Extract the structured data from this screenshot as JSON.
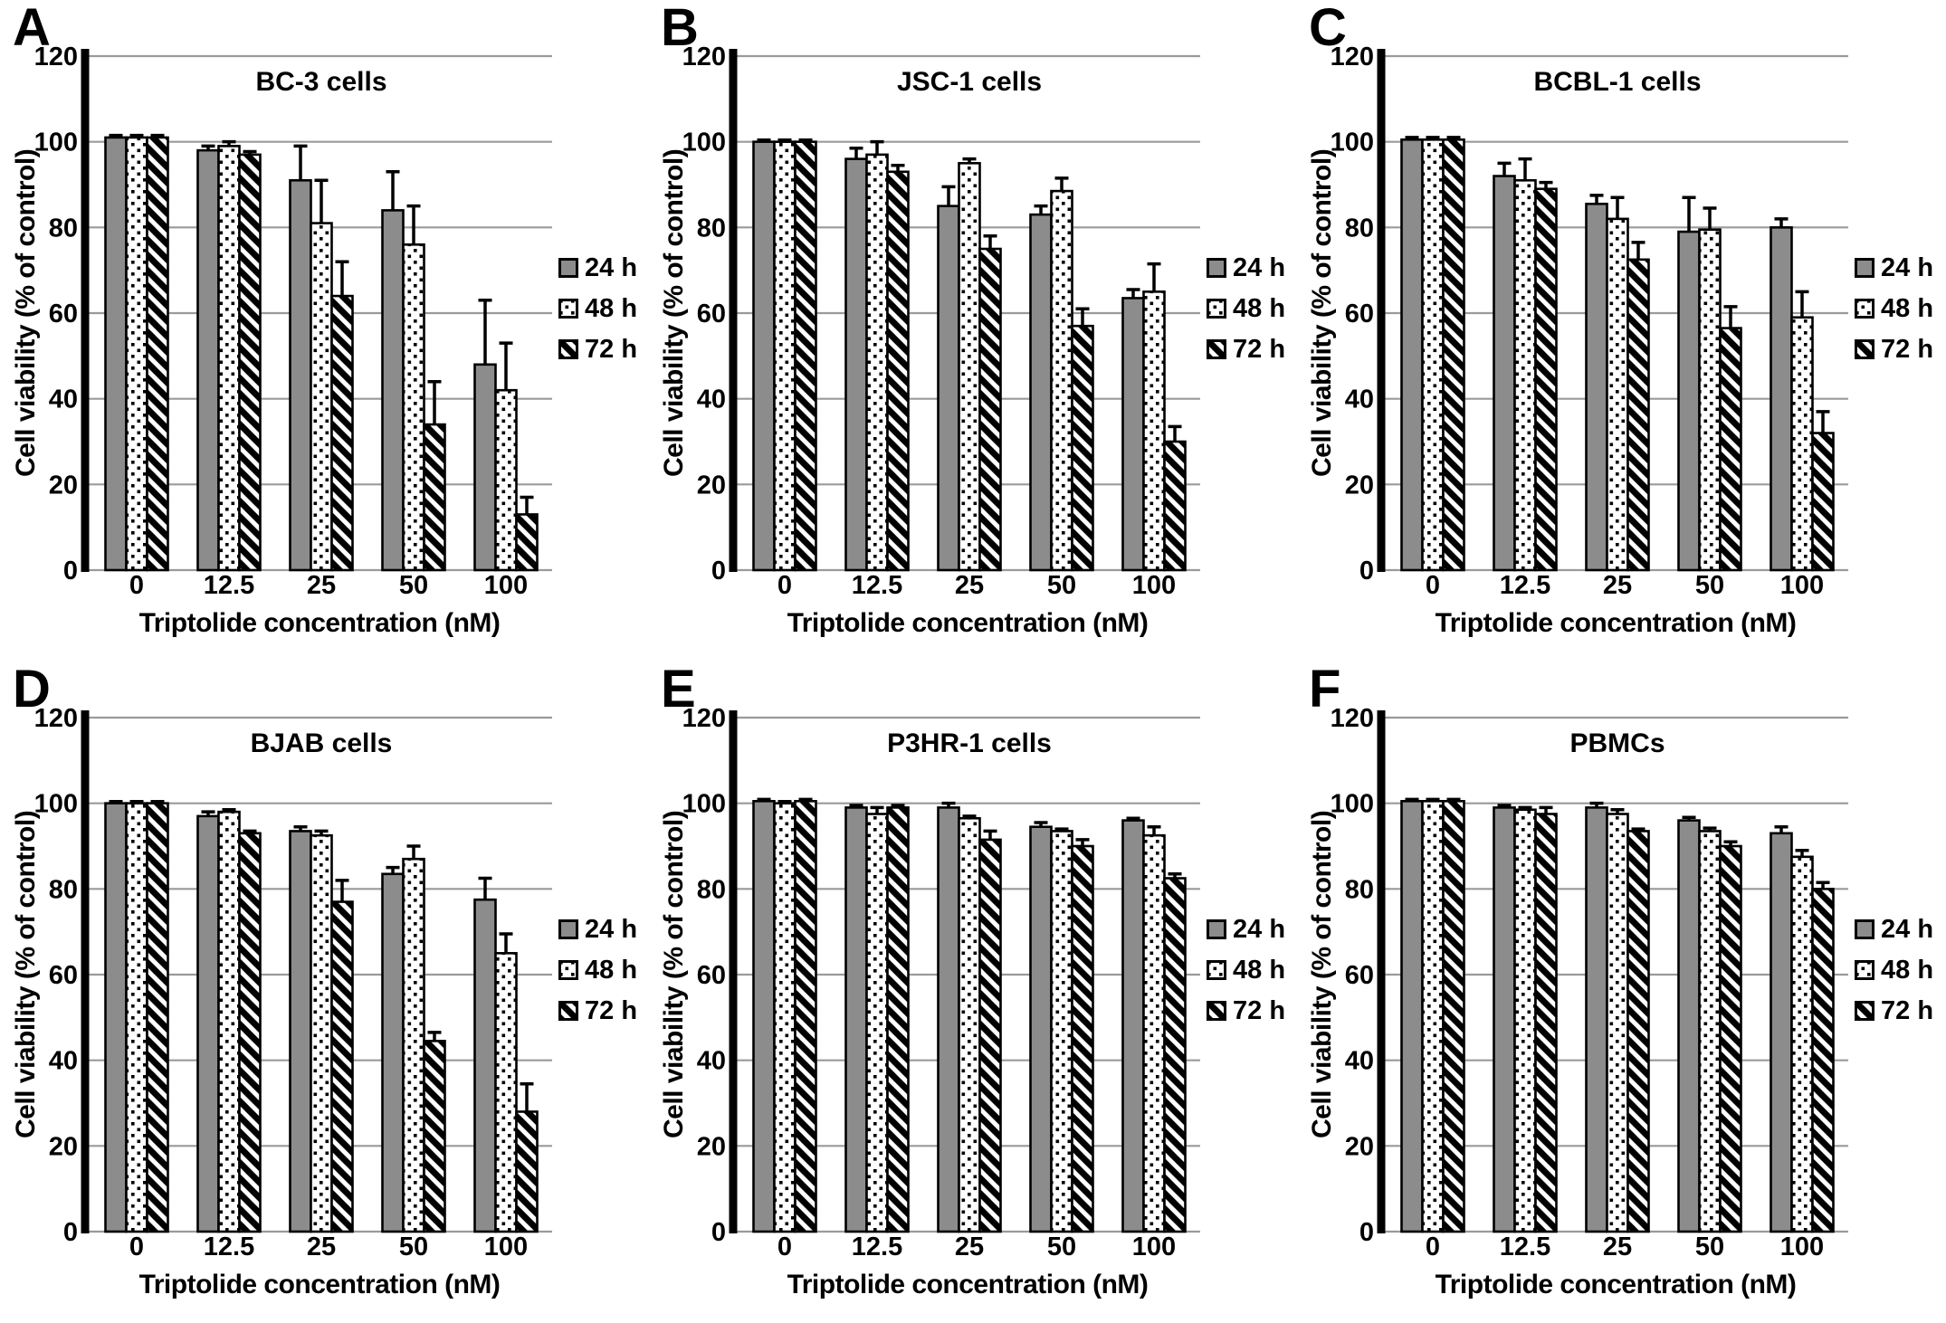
{
  "figure": {
    "y_axis_label": "Cell viability (% of control)",
    "x_axis_label": "Triptolide concentration (nM)",
    "legend_labels": [
      "24 h",
      "48 h",
      "72 h"
    ],
    "colors": {
      "background": "#ffffff",
      "text": "#000000",
      "bar_fill_24h": "#8c8c8c",
      "bar_fill_48h_base": "#ffffff",
      "bar_pattern": "#000000",
      "bar_stroke": "#000000",
      "gridline": "#9a9a9a",
      "axis_line": "#000000",
      "error_bar": "#000000"
    }
  },
  "chart_data": [
    {
      "panel": "A",
      "type": "bar",
      "title": "BC-3 cells",
      "xlabel": "Triptolide concentration (nM)",
      "ylabel": "Cell viability (% of control)",
      "categories": [
        "0",
        "12.5",
        "25",
        "50",
        "100"
      ],
      "ylim": [
        0,
        120
      ],
      "yticks": [
        0,
        20,
        40,
        60,
        80,
        100,
        120
      ],
      "grid": true,
      "legend_position": "right",
      "series": [
        {
          "name": "24 h",
          "values": [
            101,
            98,
            91,
            84,
            48
          ],
          "errors": [
            0.5,
            1,
            8,
            9,
            15
          ]
        },
        {
          "name": "48 h",
          "values": [
            101,
            99,
            81,
            76,
            42
          ],
          "errors": [
            0.5,
            1,
            10,
            9,
            11
          ]
        },
        {
          "name": "72 h",
          "values": [
            101,
            97,
            64,
            34,
            13
          ],
          "errors": [
            0.5,
            0.7,
            8,
            10,
            4
          ]
        }
      ]
    },
    {
      "panel": "B",
      "type": "bar",
      "title": "JSC-1 cells",
      "xlabel": "Triptolide concentration (nM)",
      "ylabel": "Cell viability (% of control)",
      "categories": [
        "0",
        "12.5",
        "25",
        "50",
        "100"
      ],
      "ylim": [
        0,
        120
      ],
      "yticks": [
        0,
        20,
        40,
        60,
        80,
        100,
        120
      ],
      "grid": true,
      "legend_position": "right",
      "series": [
        {
          "name": "24 h",
          "values": [
            100,
            96,
            85,
            83,
            63.5
          ],
          "errors": [
            0.4,
            2.5,
            4.5,
            2,
            2
          ]
        },
        {
          "name": "48 h",
          "values": [
            100,
            97,
            95,
            88.5,
            65
          ],
          "errors": [
            0.4,
            3,
            1,
            3,
            6.5
          ]
        },
        {
          "name": "72 h",
          "values": [
            100,
            93,
            75,
            57,
            30
          ],
          "errors": [
            0.4,
            1.5,
            3,
            4,
            3.5
          ]
        }
      ]
    },
    {
      "panel": "C",
      "type": "bar",
      "title": "BCBL-1 cells",
      "xlabel": "Triptolide concentration (nM)",
      "ylabel": "Cell viability (% of control)",
      "categories": [
        "0",
        "12.5",
        "25",
        "50",
        "100"
      ],
      "ylim": [
        0,
        120
      ],
      "yticks": [
        0,
        20,
        40,
        60,
        80,
        100,
        120
      ],
      "grid": true,
      "legend_position": "right",
      "series": [
        {
          "name": "24 h",
          "values": [
            100.5,
            92,
            85.5,
            79,
            80
          ],
          "errors": [
            0.5,
            3,
            2,
            8,
            2
          ]
        },
        {
          "name": "48 h",
          "values": [
            100.5,
            91,
            82,
            79.5,
            59
          ],
          "errors": [
            0.5,
            5,
            5,
            5,
            6
          ]
        },
        {
          "name": "72 h",
          "values": [
            100.5,
            89,
            72.5,
            56.5,
            32
          ],
          "errors": [
            0.5,
            1.5,
            4,
            5,
            5
          ]
        }
      ]
    },
    {
      "panel": "D",
      "type": "bar",
      "title": "BJAB cells",
      "xlabel": "Triptolide concentration (nM)",
      "ylabel": "Cell viability (% of control)",
      "categories": [
        "0",
        "12.5",
        "25",
        "50",
        "100"
      ],
      "ylim": [
        0,
        120
      ],
      "yticks": [
        0,
        20,
        40,
        60,
        80,
        100,
        120
      ],
      "grid": true,
      "legend_position": "right",
      "series": [
        {
          "name": "24 h",
          "values": [
            100,
            97,
            93.5,
            83.5,
            77.5
          ],
          "errors": [
            0.4,
            1,
            1,
            1.5,
            5
          ]
        },
        {
          "name": "48 h",
          "values": [
            100,
            98,
            92.5,
            87,
            65
          ],
          "errors": [
            0.4,
            0.5,
            1,
            3,
            4.5
          ]
        },
        {
          "name": "72 h",
          "values": [
            100,
            93,
            77,
            44.5,
            28
          ],
          "errors": [
            0.4,
            0.5,
            5,
            2,
            6.5
          ]
        }
      ]
    },
    {
      "panel": "E",
      "type": "bar",
      "title": "P3HR-1 cells",
      "xlabel": "Triptolide concentration (nM)",
      "ylabel": "Cell viability (% of control)",
      "categories": [
        "0",
        "12.5",
        "25",
        "50",
        "100"
      ],
      "ylim": [
        0,
        120
      ],
      "yticks": [
        0,
        20,
        40,
        60,
        80,
        100,
        120
      ],
      "grid": true,
      "legend_position": "right",
      "series": [
        {
          "name": "24 h",
          "values": [
            100.5,
            99,
            99,
            94.5,
            96
          ],
          "errors": [
            0.4,
            0.5,
            1,
            1,
            0.5
          ]
        },
        {
          "name": "48 h",
          "values": [
            100,
            97.5,
            96.5,
            93.5,
            92.5
          ],
          "errors": [
            0.4,
            1.5,
            0.5,
            0.5,
            2
          ]
        },
        {
          "name": "72 h",
          "values": [
            100.5,
            99,
            91.5,
            90,
            82.5
          ],
          "errors": [
            0.4,
            0.5,
            2,
            1.5,
            1
          ]
        }
      ]
    },
    {
      "panel": "F",
      "type": "bar",
      "title": "PBMCs",
      "xlabel": "Triptolide concentration (nM)",
      "ylabel": "Cell viability (% of control)",
      "categories": [
        "0",
        "12.5",
        "25",
        "50",
        "100"
      ],
      "ylim": [
        0,
        120
      ],
      "yticks": [
        0,
        20,
        40,
        60,
        80,
        100,
        120
      ],
      "grid": true,
      "legend_position": "right",
      "series": [
        {
          "name": "24 h",
          "values": [
            100.5,
            99,
            99,
            96,
            93
          ],
          "errors": [
            0.4,
            0.5,
            1,
            0.7,
            1.5
          ]
        },
        {
          "name": "48 h",
          "values": [
            100.5,
            98.5,
            97.5,
            93.5,
            87.5
          ],
          "errors": [
            0.4,
            0.5,
            1,
            0.7,
            1.5
          ]
        },
        {
          "name": "72 h",
          "values": [
            100.5,
            97.5,
            93.5,
            90,
            80
          ],
          "errors": [
            0.4,
            1.5,
            0.5,
            1,
            1.5
          ]
        }
      ]
    }
  ]
}
